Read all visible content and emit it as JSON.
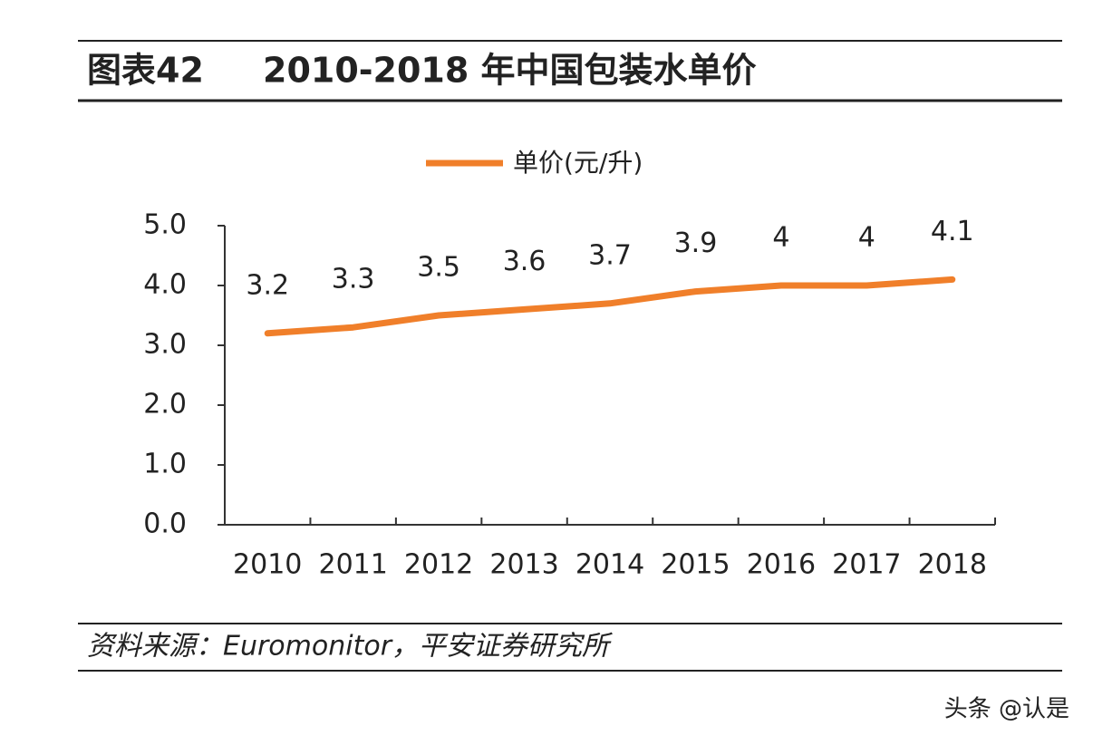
{
  "chart_data": {
    "type": "line",
    "figure_label": "图表42",
    "title": "2010-2018 年中国包装水单价",
    "source": "资料来源：Euromonitor，平安证券研究所",
    "watermark": "头条 @认是",
    "categories": [
      "2010",
      "2011",
      "2012",
      "2013",
      "2014",
      "2015",
      "2016",
      "2017",
      "2018"
    ],
    "series": [
      {
        "name": "单价(元/升)",
        "color": "#f07f2a",
        "values": [
          3.2,
          3.3,
          3.5,
          3.6,
          3.7,
          3.9,
          4,
          4,
          4.1
        ]
      }
    ],
    "ylim": [
      0,
      5
    ],
    "yticks": [
      {
        "value": 0,
        "label": "0.0"
      },
      {
        "value": 1,
        "label": "1.0"
      },
      {
        "value": 2,
        "label": "2.0"
      },
      {
        "value": 3,
        "label": "3.0"
      },
      {
        "value": 4,
        "label": "4.0"
      },
      {
        "value": 5,
        "label": "5.0"
      }
    ],
    "legend": "top",
    "data_labels": true
  }
}
